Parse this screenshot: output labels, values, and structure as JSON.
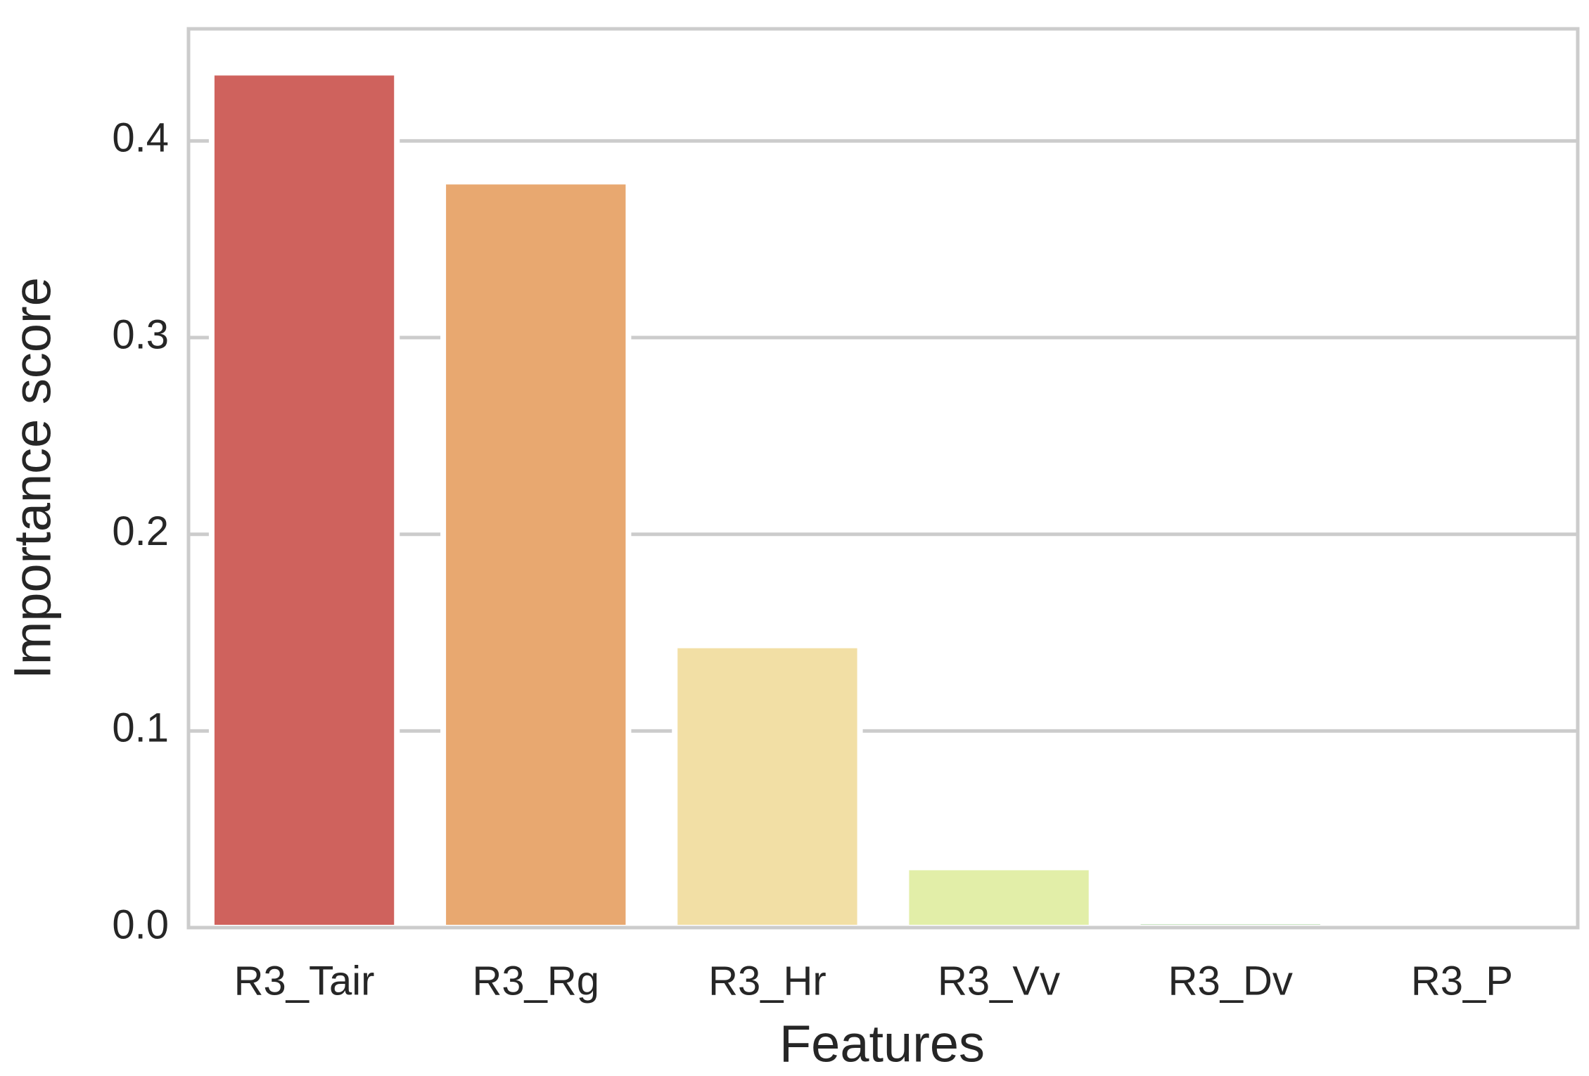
{
  "chart_data": {
    "type": "bar",
    "x_label": "Features",
    "y_label": "Importance score",
    "categories": [
      "R3_Tair",
      "R3_Rg",
      "R3_Hr",
      "R3_Vv",
      "R3_Dv",
      "R3_P"
    ],
    "values": [
      0.4347,
      0.3793,
      0.1435,
      0.0306,
      0.0031,
      0.0005
    ],
    "colors": [
      "#cf625d",
      "#e8a870",
      "#f2dfa5",
      "#e2eea8",
      "#a9d5a1",
      "#6fb1bf"
    ],
    "ylim": [
      0,
      0.457
    ],
    "yticks": [
      {
        "value": 0,
        "label": "0.0"
      },
      0.1,
      0.2,
      0.3,
      0.4
    ],
    "grid": true
  }
}
